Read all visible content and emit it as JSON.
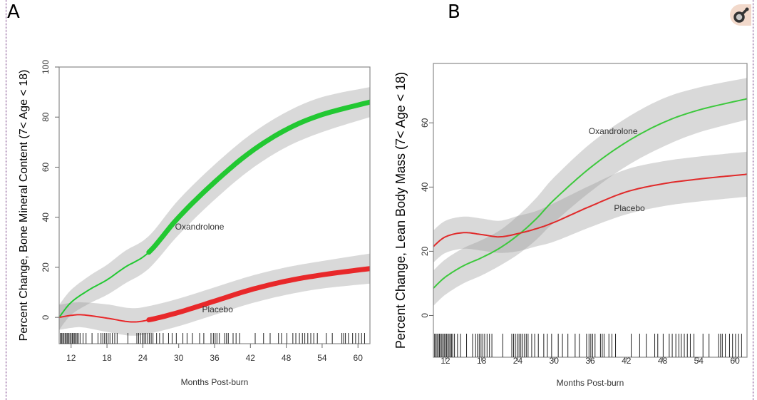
{
  "panels": [
    {
      "letter": "A"
    },
    {
      "letter": "B"
    }
  ],
  "badge_icon": "male-symbol-icon",
  "chart_data": [
    {
      "type": "line",
      "panel": "A",
      "title": "",
      "xlabel": "Months Post-burn",
      "ylabel": "Percent Change, Bone Mineral Content (7< Age < 18)",
      "xlim": [
        10,
        62
      ],
      "ylim": [
        -10.5,
        100
      ],
      "xticks": [
        12,
        18,
        24,
        30,
        36,
        42,
        48,
        54,
        60
      ],
      "yticks": [
        0,
        20,
        40,
        60,
        80,
        100
      ],
      "grid": false,
      "annotations": [
        {
          "text": "Oxandrolone",
          "x": 33.5,
          "y": 35
        },
        {
          "text": "Placebo",
          "x": 36.5,
          "y": 2
        }
      ],
      "series": [
        {
          "name": "Oxandrolone",
          "color": "#22c832",
          "x": [
            10,
            12,
            15,
            18,
            21,
            25,
            30,
            36,
            42,
            48,
            54,
            62
          ],
          "y": [
            0,
            6,
            11,
            15,
            20,
            26,
            40,
            54,
            66,
            75,
            81,
            86
          ],
          "ci_halfwidth": [
            5,
            5,
            5.5,
            6,
            6.5,
            6.5,
            7,
            7,
            7,
            7,
            7,
            6
          ],
          "thick_from": 25
        },
        {
          "name": "Placebo",
          "color": "#e8282a",
          "x": [
            10,
            12,
            14,
            18,
            22,
            25,
            30,
            36,
            42,
            48,
            54,
            62
          ],
          "y": [
            0,
            0.8,
            1,
            -0.3,
            -1.8,
            -1,
            2,
            6.5,
            11,
            14.5,
            17,
            19.5
          ],
          "ci_halfwidth": [
            5,
            5,
            5,
            5.5,
            5.5,
            5.5,
            5.5,
            5.5,
            5.5,
            5.5,
            5.5,
            6
          ],
          "thick_from": 25
        }
      ],
      "rug_x": [
        10.2,
        10.4,
        10.6,
        10.8,
        11,
        11.2,
        11.4,
        11.6,
        11.8,
        12,
        12.2,
        12.4,
        12.6,
        12.8,
        13,
        13.2,
        13.5,
        14,
        14.5,
        15.5,
        16.5,
        17,
        17.3,
        17.6,
        17.9,
        18.2,
        18.5,
        18.9,
        19.3,
        19.7,
        21.5,
        23,
        23.3,
        23.6,
        23.9,
        24.2,
        24.5,
        24.8,
        25.1,
        25.4,
        25.7,
        26.3,
        26.8,
        27.4,
        28.3,
        28.9,
        29.6,
        30.7,
        31.4,
        32.3,
        33.5,
        34.2,
        35.4,
        35.8,
        36.1,
        36.4,
        36.8,
        37.7,
        38,
        38.3,
        39.1,
        39.6,
        40.2,
        42.8,
        44.2,
        45.3,
        46.7,
        47.2,
        48.1,
        49.1,
        49.6,
        50.2,
        50.7,
        51.1,
        51.6,
        52.1,
        52.6,
        53.2,
        54.7,
        55.7,
        57.3,
        57.6,
        57.9,
        58.4,
        59.1,
        59.6,
        60.1,
        60.6,
        61.1
      ]
    },
    {
      "type": "line",
      "panel": "B",
      "title": "",
      "xlabel": "Months Post-burn",
      "ylabel": "Percent Change, Lean Body Mass (7< Age < 18)",
      "xlim": [
        10,
        62
      ],
      "ylim": [
        -13,
        78.5
      ],
      "xticks": [
        12,
        18,
        24,
        30,
        36,
        42,
        48,
        54,
        60
      ],
      "yticks": [
        0,
        20,
        40,
        60
      ],
      "grid": false,
      "annotations": [
        {
          "text": "Oxandrolone",
          "x": 39.8,
          "y": 56.5
        },
        {
          "text": "Placebo",
          "x": 42.5,
          "y": 32.5
        }
      ],
      "series": [
        {
          "name": "Oxandrolone",
          "color": "#3cc83c",
          "x": [
            10,
            12,
            15,
            18,
            21,
            24,
            27,
            30,
            36,
            42,
            48,
            54,
            62
          ],
          "y": [
            8.5,
            12,
            15.5,
            18,
            21,
            25,
            30,
            36,
            46,
            54,
            60,
            64,
            67.5
          ],
          "ci_halfwidth": [
            5.5,
            5.5,
            5.5,
            5.5,
            5.5,
            6,
            6.5,
            7,
            7.5,
            7.5,
            7.5,
            7,
            6.5
          ]
        },
        {
          "name": "Placebo",
          "color": "#e02a2a",
          "x": [
            10,
            12,
            15,
            18,
            21,
            24,
            27,
            30,
            36,
            42,
            48,
            54,
            62
          ],
          "y": [
            21.5,
            24.5,
            25.8,
            25.2,
            24.5,
            25.5,
            27,
            29,
            34,
            38.5,
            41,
            42.5,
            44
          ],
          "ci_halfwidth": [
            5,
            5,
            5,
            5,
            5,
            5.5,
            5.5,
            6,
            6.5,
            7,
            7,
            7,
            7
          ]
        }
      ],
      "rug_x": [
        10.2,
        10.4,
        10.6,
        10.8,
        11,
        11.2,
        11.4,
        11.6,
        11.8,
        12,
        12.2,
        12.4,
        12.6,
        12.8,
        13,
        13.2,
        13.5,
        14,
        14.5,
        15.5,
        16.5,
        17,
        17.3,
        17.6,
        17.9,
        18.2,
        18.5,
        18.9,
        19.3,
        19.7,
        21.5,
        23,
        23.3,
        23.6,
        23.9,
        24.2,
        24.5,
        24.8,
        25.1,
        25.4,
        25.7,
        26.3,
        26.8,
        27.4,
        28.3,
        28.9,
        29.6,
        30.7,
        31.4,
        32.3,
        33.5,
        34.2,
        35.4,
        35.8,
        36.1,
        36.4,
        36.8,
        37.7,
        38,
        38.3,
        39.1,
        39.6,
        40.2,
        42.8,
        44.2,
        45.3,
        46.7,
        47.2,
        48.1,
        49.1,
        49.6,
        50.2,
        50.7,
        51.1,
        51.6,
        52.1,
        52.6,
        53.2,
        54.7,
        55.7,
        57.3,
        57.6,
        57.9,
        58.4,
        59.1,
        59.6,
        60.1,
        60.6,
        61.1
      ]
    }
  ]
}
